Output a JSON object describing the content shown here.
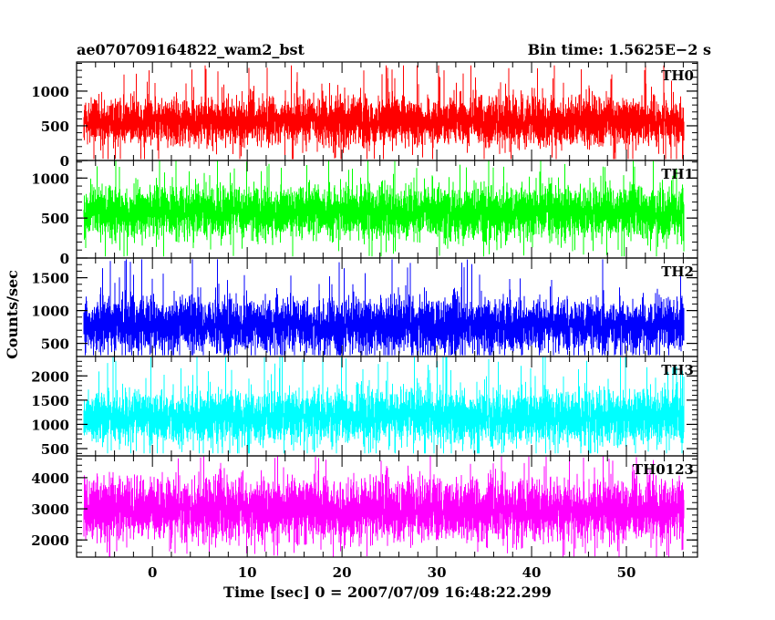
{
  "chart_data": {
    "type": "line",
    "title_left": "ae070709164822_wam2_bst",
    "title_right": "Bin time: 1.5625E−2 s",
    "xlabel": "Time [sec] 0 = 2007/07/09 16:48:22.299",
    "ylabel": "Counts/sec",
    "x_ticks": [
      "0",
      "10",
      "20",
      "30",
      "40",
      "50"
    ],
    "xlim": [
      -8.0,
      57.5
    ],
    "data_x_range": [
      -7.2,
      56.0
    ],
    "bin_time": 0.015625,
    "grid": false,
    "panels": [
      {
        "name": "TH0",
        "color": "#ff0000",
        "ylim": [
          0,
          1420
        ],
        "y_ticks": [
          "0",
          "500",
          "1000"
        ],
        "mean": 560,
        "low": 20,
        "high": 1370,
        "noise": 170
      },
      {
        "name": "TH1",
        "color": "#00ff00",
        "ylim": [
          0,
          1220
        ],
        "y_ticks": [
          "0",
          "500",
          "1000"
        ],
        "mean": 570,
        "low": 20,
        "high": 1220,
        "noise": 160
      },
      {
        "name": "TH2",
        "color": "#0000ff",
        "ylim": [
          300,
          1800
        ],
        "y_ticks": [
          "500",
          "1000",
          "1500"
        ],
        "mean": 770,
        "low": 320,
        "high": 1780,
        "noise": 200
      },
      {
        "name": "TH3",
        "color": "#00ffff",
        "ylim": [
          350,
          2400
        ],
        "y_ticks": [
          "500",
          "1000",
          "1500",
          "2000"
        ],
        "mean": 1150,
        "low": 400,
        "high": 2400,
        "noise": 270
      },
      {
        "name": "TH0123",
        "color": "#ff00ff",
        "ylim": [
          1450,
          4700
        ],
        "y_ticks": [
          "2000",
          "3000",
          "4000"
        ],
        "mean": 2950,
        "low": 1450,
        "high": 4700,
        "noise": 480
      }
    ]
  }
}
